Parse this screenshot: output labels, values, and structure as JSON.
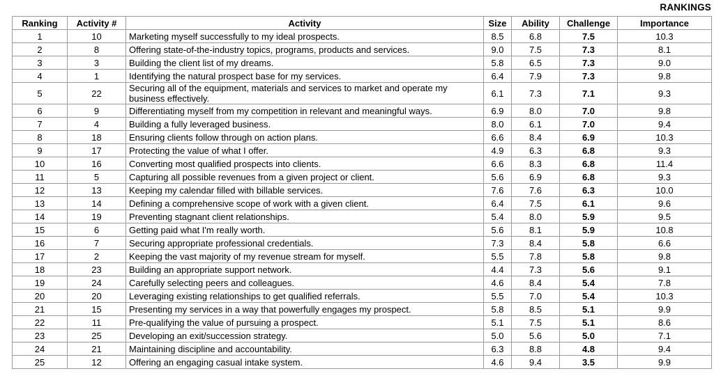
{
  "page": {
    "rankings_label": "RANKINGS"
  },
  "table": {
    "headers": [
      "Ranking",
      "Activity #",
      "Activity",
      "Size",
      "Ability",
      "Challenge",
      "Importance"
    ],
    "rows": [
      [
        "1",
        "10",
        "Marketing myself successfully to my ideal prospects.",
        "8.5",
        "6.8",
        "7.5",
        "10.3"
      ],
      [
        "2",
        "8",
        "Offering state-of-the-industry topics, programs, products and services.",
        "9.0",
        "7.5",
        "7.3",
        "8.1"
      ],
      [
        "3",
        "3",
        "Building the client list of my dreams.",
        "5.8",
        "6.5",
        "7.3",
        "9.0"
      ],
      [
        "4",
        "1",
        "Identifying the natural prospect base for my services.",
        "6.4",
        "7.9",
        "7.3",
        "9.8"
      ],
      [
        "5",
        "22",
        "Securing all of the equipment, materials and services to market and operate my business effectively.",
        "6.1",
        "7.3",
        "7.1",
        "9.3"
      ],
      [
        "6",
        "9",
        "Differentiating myself from my competition in relevant and meaningful ways.",
        "6.9",
        "8.0",
        "7.0",
        "9.8"
      ],
      [
        "7",
        "4",
        "Building a fully leveraged business.",
        "8.0",
        "6.1",
        "7.0",
        "9.4"
      ],
      [
        "8",
        "18",
        "Ensuring clients follow through on action plans.",
        "6.6",
        "8.4",
        "6.9",
        "10.3"
      ],
      [
        "9",
        "17",
        "Protecting the value of what I offer.",
        "4.9",
        "6.3",
        "6.8",
        "9.3"
      ],
      [
        "10",
        "16",
        "Converting most qualified prospects into clients.",
        "6.6",
        "8.3",
        "6.8",
        "11.4"
      ],
      [
        "11",
        "5",
        "Capturing all possible revenues from a given project or client.",
        "5.6",
        "6.9",
        "6.8",
        "9.3"
      ],
      [
        "12",
        "13",
        "Keeping my calendar filled with billable services.",
        "7.6",
        "7.6",
        "6.3",
        "10.0"
      ],
      [
        "13",
        "14",
        "Defining a comprehensive scope of work with a given client.",
        "6.4",
        "7.5",
        "6.1",
        "9.6"
      ],
      [
        "14",
        "19",
        "Preventing stagnant client relationships.",
        "5.4",
        "8.0",
        "5.9",
        "9.5"
      ],
      [
        "15",
        "6",
        "Getting paid what I'm really worth.",
        "5.6",
        "8.1",
        "5.9",
        "10.8"
      ],
      [
        "16",
        "7",
        "Securing appropriate professional credentials.",
        "7.3",
        "8.4",
        "5.8",
        "6.6"
      ],
      [
        "17",
        "2",
        "Keeping the vast majority of my revenue stream for myself.",
        "5.5",
        "7.8",
        "5.8",
        "9.8"
      ],
      [
        "18",
        "23",
        "Building an appropriate support network.",
        "4.4",
        "7.3",
        "5.6",
        "9.1"
      ],
      [
        "19",
        "24",
        "Carefully selecting peers and colleagues.",
        "4.6",
        "8.4",
        "5.4",
        "7.8"
      ],
      [
        "20",
        "20",
        "Leveraging existing relationships to get qualified referrals.",
        "5.5",
        "7.0",
        "5.4",
        "10.3"
      ],
      [
        "21",
        "15",
        "Presenting my services in a way that powerfully engages my prospect.",
        "5.8",
        "8.5",
        "5.1",
        "9.9"
      ],
      [
        "22",
        "11",
        "Pre-qualifying the value of pursuing a prospect.",
        "5.1",
        "7.5",
        "5.1",
        "8.6"
      ],
      [
        "23",
        "25",
        "Developing an exit/succession strategy.",
        "5.0",
        "5.6",
        "5.0",
        "7.1"
      ],
      [
        "24",
        "21",
        "Maintaining discipline and accountability.",
        "6.3",
        "8.8",
        "4.8",
        "9.4"
      ],
      [
        "25",
        "12",
        "Offering an engaging casual intake system.",
        "4.6",
        "9.4",
        "3.5",
        "9.9"
      ]
    ]
  }
}
